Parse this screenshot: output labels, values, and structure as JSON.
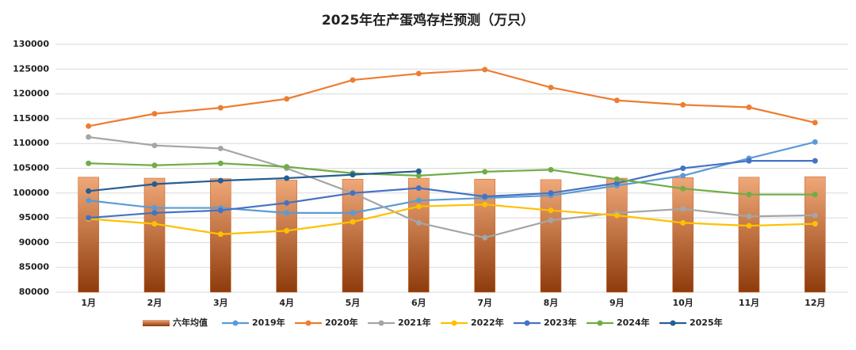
{
  "chart_data": {
    "type": "bar-line",
    "title": "2025年在产蛋鸡存栏预测（万只）",
    "categories": [
      "1月",
      "2月",
      "3月",
      "4月",
      "5月",
      "6月",
      "7月",
      "8月",
      "9月",
      "10月",
      "11月",
      "12月"
    ],
    "bar": {
      "name": "六年均值",
      "values": [
        103200,
        103000,
        102900,
        102600,
        102800,
        103000,
        102800,
        102700,
        103000,
        103100,
        103200,
        103300
      ]
    },
    "series": [
      {
        "name": "2019年",
        "color": "#5b9bd5",
        "values": [
          98500,
          97000,
          97000,
          96000,
          96000,
          98500,
          99000,
          99500,
          101500,
          103500,
          107000,
          110300
        ]
      },
      {
        "name": "2020年",
        "color": "#ed7d31",
        "values": [
          113500,
          116000,
          117200,
          119000,
          122800,
          124100,
          124900,
          121300,
          118700,
          117800,
          117300,
          114200
        ]
      },
      {
        "name": "2021年",
        "color": "#a5a5a5",
        "values": [
          111300,
          109600,
          109000,
          105000,
          100000,
          94000,
          91000,
          94500,
          96000,
          96800,
          95300,
          95500
        ]
      },
      {
        "name": "2022年",
        "color": "#ffc000",
        "values": [
          94800,
          93800,
          91700,
          92400,
          94200,
          97300,
          97700,
          96500,
          95500,
          94000,
          93400,
          93800
        ]
      },
      {
        "name": "2023年",
        "color": "#4472c4",
        "values": [
          95000,
          96000,
          96500,
          98000,
          100000,
          101000,
          99300,
          100000,
          102000,
          105000,
          106500,
          106500
        ]
      },
      {
        "name": "2024年",
        "color": "#70ad47",
        "values": [
          106000,
          105600,
          106000,
          105300,
          104000,
          103500,
          104300,
          104700,
          102800,
          100900,
          99700,
          99700
        ]
      },
      {
        "name": "2025年",
        "color": "#255e91",
        "values": [
          100400,
          101800,
          102500,
          103000,
          103700,
          104400,
          null,
          null,
          null,
          null,
          null,
          null
        ]
      }
    ],
    "ylim": [
      80000,
      130000
    ],
    "yticks": [
      80000,
      85000,
      90000,
      95000,
      100000,
      105000,
      110000,
      115000,
      120000,
      125000,
      130000
    ],
    "grid": true
  }
}
